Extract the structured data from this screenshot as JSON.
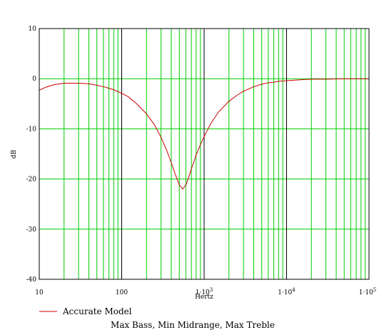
{
  "chart_data": {
    "type": "line",
    "title": "",
    "caption": "Max Bass, Min Midrange, Max Treble",
    "xlabel": "Hertz",
    "ylabel": "dB",
    "xscale": "log",
    "xlim": [
      10,
      100000
    ],
    "ylim": [
      -40,
      10
    ],
    "grid": true,
    "legend_position": "bottom-left",
    "colors": {
      "series": "#cc0000",
      "grid": "#00cc00",
      "decade_lines": "#000000"
    },
    "y_ticks": [
      {
        "value": 10,
        "label": "10"
      },
      {
        "value": 0,
        "label": "0"
      },
      {
        "value": -10,
        "label": "-10"
      },
      {
        "value": -20,
        "label": "-20"
      },
      {
        "value": -30,
        "label": "-30"
      },
      {
        "value": -40,
        "label": "-40"
      }
    ],
    "x_ticks": [
      {
        "value": 10,
        "label": "10"
      },
      {
        "value": 100,
        "label": "100"
      },
      {
        "value": 1000,
        "label": "1·10",
        "sup": "3"
      },
      {
        "value": 10000,
        "label": "1·10",
        "sup": "4"
      },
      {
        "value": 100000,
        "label": "1·10",
        "sup": "5"
      }
    ],
    "series": [
      {
        "name": "Accurate Model",
        "x": [
          10,
          12,
          15,
          20,
          25,
          30,
          40,
          50,
          60,
          70,
          80,
          100,
          120,
          150,
          200,
          250,
          300,
          350,
          400,
          450,
          500,
          550,
          600,
          650,
          700,
          750,
          800,
          900,
          1000,
          1200,
          1500,
          2000,
          2500,
          3000,
          4000,
          5000,
          6000,
          7000,
          8000,
          10000,
          15000,
          20000,
          30000,
          50000,
          70000,
          100000
        ],
        "y": [
          -2.3,
          -1.7,
          -1.2,
          -0.9,
          -0.9,
          -0.9,
          -1.0,
          -1.3,
          -1.6,
          -1.9,
          -2.2,
          -2.9,
          -3.6,
          -4.9,
          -7.0,
          -9.2,
          -11.7,
          -14.2,
          -16.8,
          -19.2,
          -21.2,
          -22.0,
          -21.2,
          -19.6,
          -18.0,
          -16.6,
          -15.2,
          -13.2,
          -11.5,
          -9.0,
          -6.6,
          -4.5,
          -3.3,
          -2.5,
          -1.6,
          -1.1,
          -0.8,
          -0.7,
          -0.5,
          -0.4,
          -0.2,
          -0.1,
          -0.1,
          0.0,
          0.0,
          0.0
        ]
      }
    ]
  }
}
